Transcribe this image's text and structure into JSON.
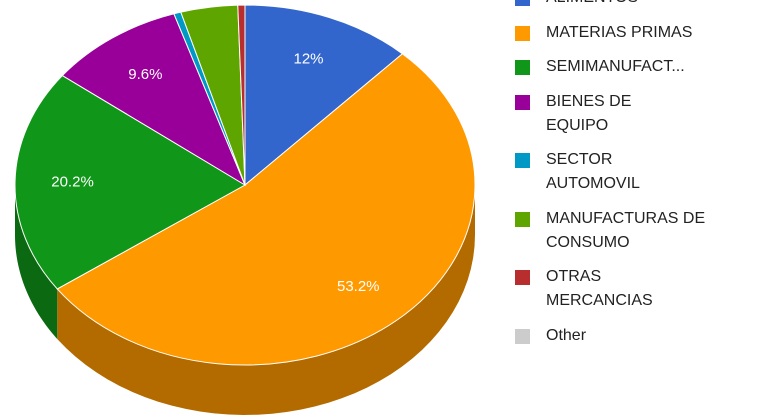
{
  "chart_data": {
    "type": "pie3d",
    "categories": [
      "ALIMENTOS",
      "MATERIAS PRIMAS",
      "SEMIMANUFACT...",
      "BIENES DE EQUIPO",
      "SECTOR AUTOMOVIL",
      "MANUFACTURAS DE CONSUMO",
      "OTRAS MERCANCIAS",
      "Other"
    ],
    "values": [
      12,
      53.2,
      20.2,
      9.6,
      0.5,
      4.0,
      0.5,
      0
    ],
    "value_labels": [
      "12%",
      "53.2%",
      "20.2%",
      "9.6%",
      null,
      null,
      null,
      null
    ],
    "colors": [
      "#3366cc",
      "#ff9900",
      "#109618",
      "#990099",
      "#0099c6",
      "#5ea500",
      "#b82e2e",
      "#cccccc"
    ],
    "legend": "right"
  }
}
